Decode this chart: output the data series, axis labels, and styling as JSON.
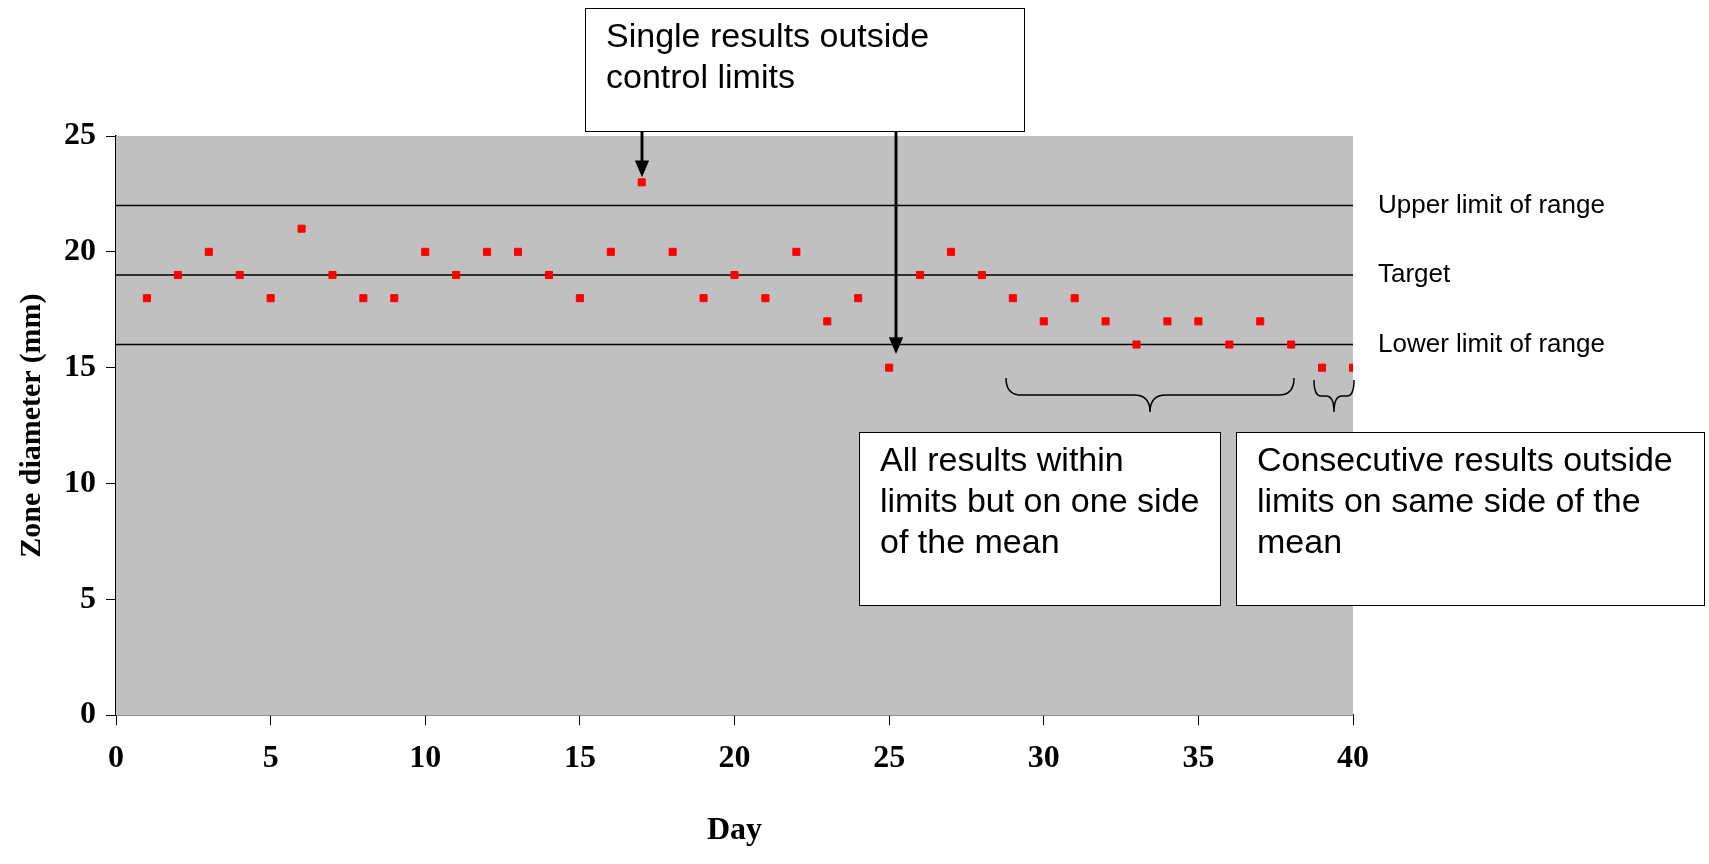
{
  "chart_data": {
    "type": "scatter",
    "xlabel": "Day",
    "ylabel": "Zone diameter (mm)",
    "x": [
      1,
      2,
      3,
      4,
      5,
      6,
      7,
      8,
      9,
      10,
      11,
      12,
      13,
      14,
      15,
      16,
      17,
      18,
      19,
      20,
      21,
      22,
      23,
      24,
      25,
      26,
      27,
      28,
      29,
      30,
      31,
      32,
      33,
      34,
      35,
      36,
      37,
      38,
      39,
      40
    ],
    "series": [
      {
        "color": "#ff0000",
        "values": [
          18,
          19,
          20,
          19,
          18,
          21,
          19,
          18,
          18,
          20,
          19,
          20,
          20,
          19,
          18,
          20,
          23,
          20,
          18,
          19,
          18,
          20,
          17,
          18,
          15,
          19,
          20,
          19,
          18,
          17,
          18,
          17,
          16,
          17,
          17,
          16,
          17,
          16,
          15,
          15
        ]
      }
    ],
    "xlim": [
      0,
      40
    ],
    "xticks": [
      0,
      5,
      10,
      15,
      20,
      25,
      30,
      35,
      40
    ],
    "ylim": [
      0,
      25
    ],
    "yticks": [
      0,
      5,
      10,
      15,
      20,
      25
    ],
    "grid": false,
    "legend": false,
    "marker": "square",
    "ref_lines": [
      {
        "axis": "y",
        "value": 22,
        "label": "Upper limit of range",
        "color": "#000000"
      },
      {
        "axis": "y",
        "value": 19,
        "label": "Target",
        "color": "#000000"
      },
      {
        "axis": "y",
        "value": 16,
        "label": "Lower limit of range",
        "color": "#000000"
      }
    ],
    "annotations": [
      {
        "text": "Single results outside control limits",
        "x": 17,
        "y": 23
      },
      "All results within limits but on one side of the mean",
      "Consecutive results outside limits on same side of the mean"
    ]
  }
}
